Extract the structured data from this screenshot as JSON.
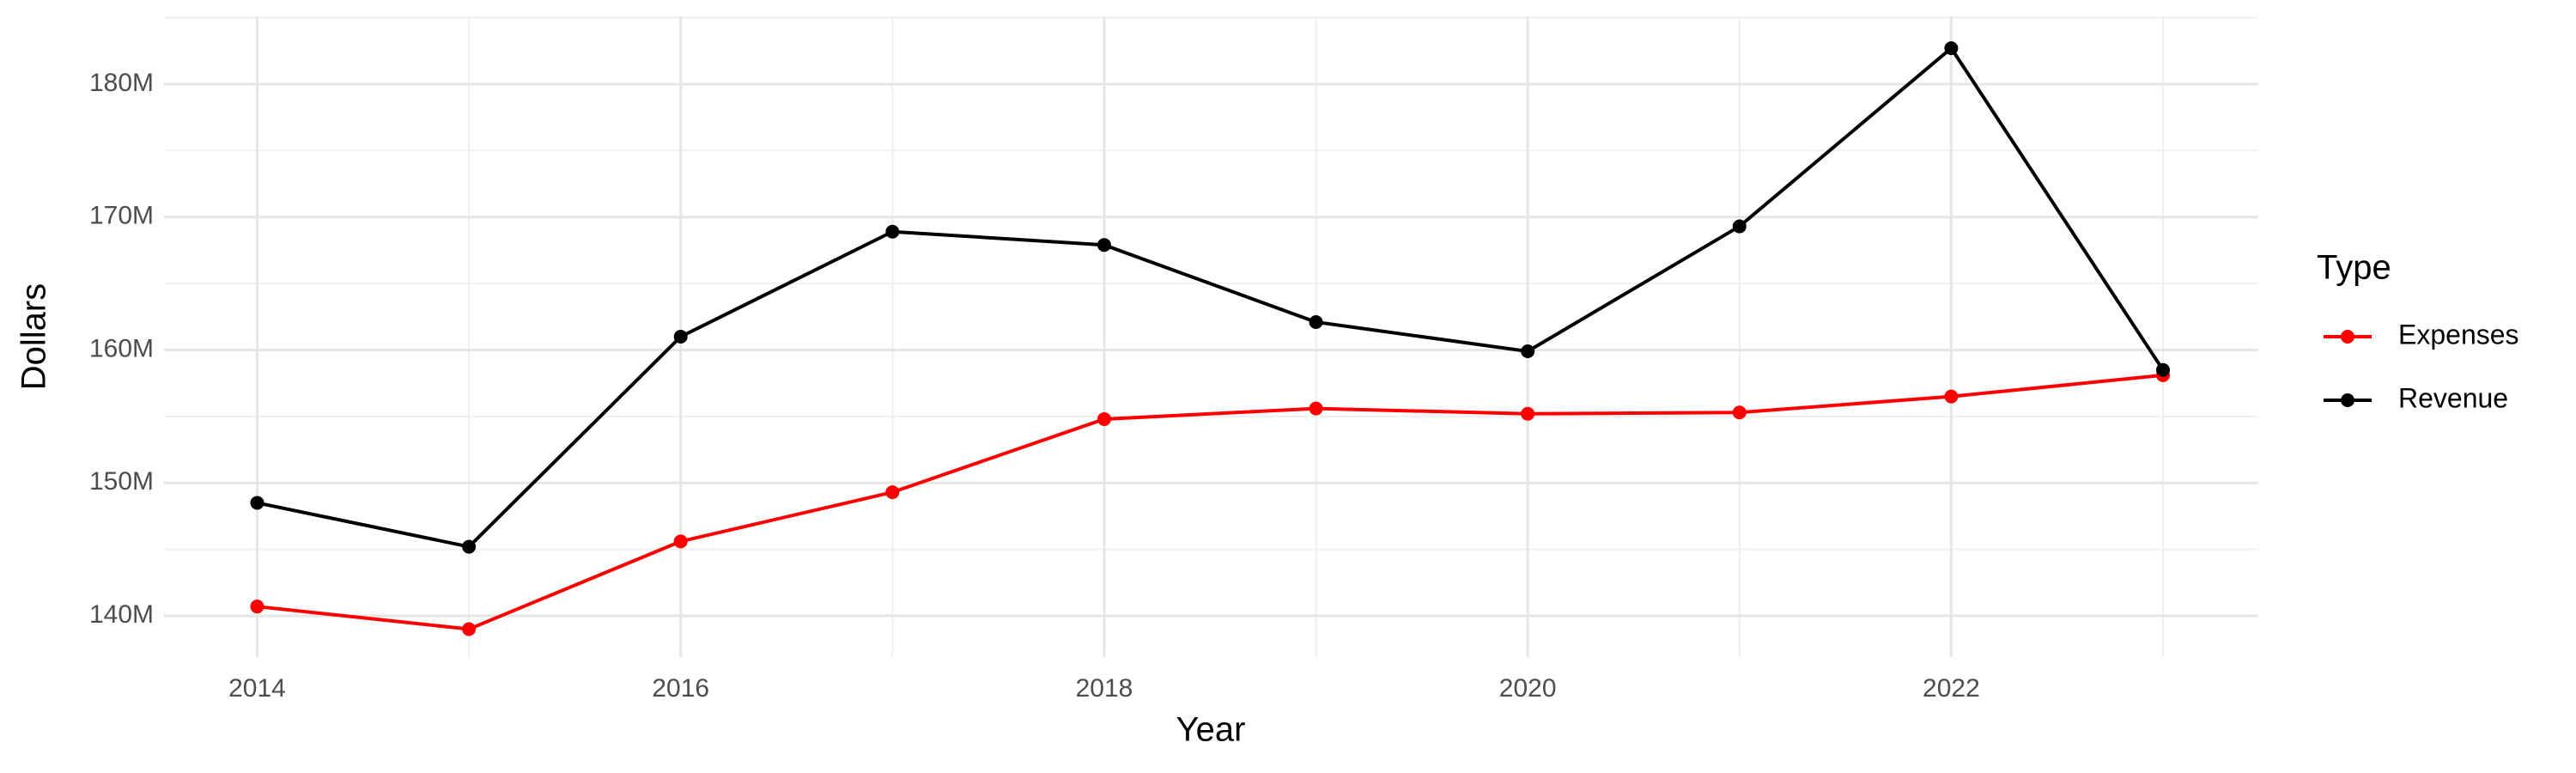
{
  "chart_data": {
    "type": "line",
    "x_label": "Year",
    "y_label": "Dollars",
    "legend_title": "Type",
    "x": [
      2014,
      2015,
      2016,
      2017,
      2018,
      2019,
      2020,
      2021,
      2022,
      2023
    ],
    "series": [
      {
        "name": "Expenses",
        "color": "#ff0000",
        "values": [
          140700000,
          139000000,
          145600000,
          149300000,
          154800000,
          155600000,
          155200000,
          155300000,
          156500000,
          158100000
        ]
      },
      {
        "name": "Revenue",
        "color": "#000000",
        "values": [
          148500000,
          145200000,
          161000000,
          168900000,
          167900000,
          162100000,
          159900000,
          169300000,
          182700000,
          158500000
        ]
      }
    ],
    "xlim": [
      2013.56,
      2023.45
    ],
    "xticks": [
      2014,
      2016,
      2018,
      2020,
      2022
    ],
    "ylim": [
      136900000,
      185100000
    ],
    "yticks": [
      {
        "value": 140000000,
        "label": "140M"
      },
      {
        "value": 150000000,
        "label": "150M"
      },
      {
        "value": 160000000,
        "label": "160M"
      },
      {
        "value": 170000000,
        "label": "170M"
      },
      {
        "value": 180000000,
        "label": "180M"
      }
    ],
    "grid": true,
    "legend": "right"
  }
}
